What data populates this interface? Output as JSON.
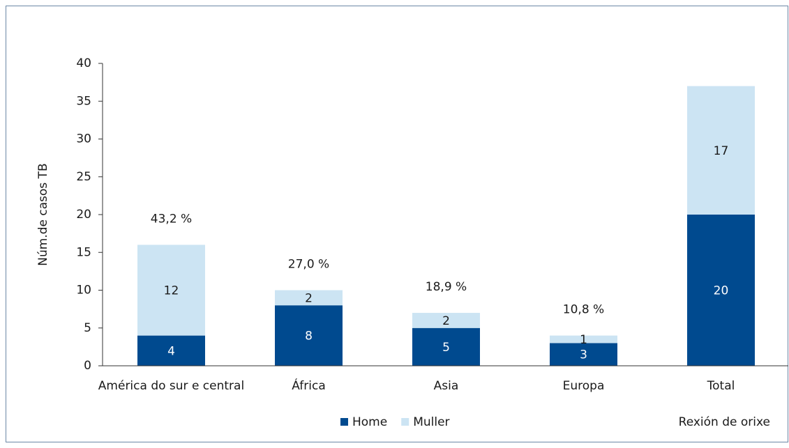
{
  "chart_data": {
    "type": "stacked_bar",
    "y_label": "Núm.de casos TB",
    "x_label": "Rexión de orixe",
    "categories": [
      "América do sur e central",
      "África",
      "Asia",
      "Europa",
      "Total"
    ],
    "series": [
      {
        "name": "Home",
        "color": "#004a8f",
        "values": [
          4,
          8,
          5,
          3,
          20
        ]
      },
      {
        "name": "Muller",
        "color": "#cce4f3",
        "values": [
          12,
          2,
          2,
          1,
          17
        ]
      }
    ],
    "annotations": [
      "43,2 %",
      "27,0 %",
      "18,9 %",
      "10,8 %",
      null
    ],
    "ylim": [
      0,
      40
    ],
    "yticks": [
      0,
      5,
      10,
      15,
      20,
      25,
      30,
      35,
      40
    ],
    "grid": false
  }
}
